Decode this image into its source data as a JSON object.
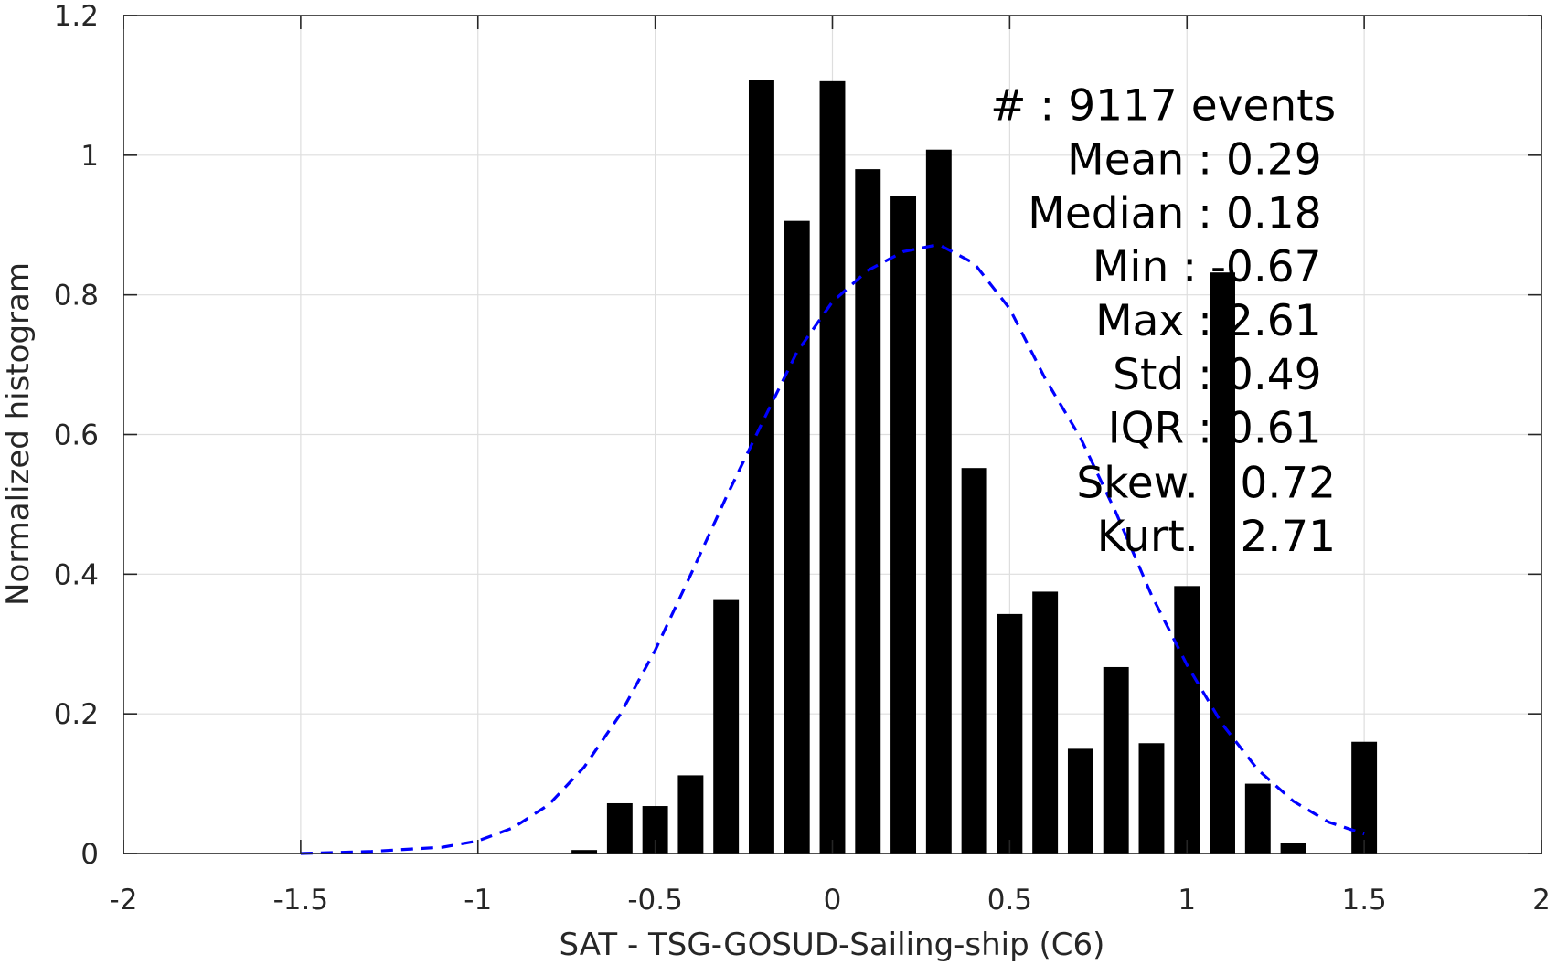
{
  "chart_data": {
    "type": "bar",
    "xlabel": "SAT - TSG-GOSUD-Sailing-ship (C6)",
    "ylabel": "Normalized histogram",
    "xlim": [
      -2,
      2
    ],
    "ylim": [
      0,
      1.2
    ],
    "xticks": [
      -2,
      -1.5,
      -1,
      -0.5,
      0,
      0.5,
      1,
      1.5,
      2
    ],
    "xtick_labels": [
      "-2",
      "-1.5",
      "-1",
      "-0.5",
      "0",
      "0.5",
      "1",
      "1.5",
      "2"
    ],
    "yticks": [
      0,
      0.2,
      0.4,
      0.6,
      0.8,
      1,
      1.2
    ],
    "ytick_labels": [
      "0",
      "0.2",
      "0.4",
      "0.6",
      "0.8",
      "1",
      "1.2"
    ],
    "grid": true,
    "bar_width": 0.072,
    "bar_color": "#000000",
    "series": [
      {
        "type": "bar",
        "x": [
          -0.7,
          -0.6,
          -0.5,
          -0.4,
          -0.3,
          -0.2,
          -0.1,
          0.0,
          0.1,
          0.2,
          0.3,
          0.4,
          0.5,
          0.6,
          0.7,
          0.8,
          0.9,
          1.0,
          1.1,
          1.2,
          1.3,
          1.5
        ],
        "values": [
          0.005,
          0.072,
          0.068,
          0.112,
          0.363,
          1.108,
          0.906,
          1.106,
          0.98,
          0.942,
          1.008,
          0.552,
          0.343,
          0.375,
          0.15,
          0.267,
          0.158,
          0.383,
          0.832,
          0.1,
          0.015,
          0.16
        ]
      },
      {
        "type": "line",
        "style": "dashed",
        "color": "#0000ff",
        "x": [
          -1.5,
          -1.3,
          -1.1,
          -1.0,
          -0.9,
          -0.8,
          -0.7,
          -0.6,
          -0.5,
          -0.4,
          -0.3,
          -0.2,
          -0.1,
          0.0,
          0.1,
          0.2,
          0.3,
          0.4,
          0.5,
          0.6,
          0.7,
          0.8,
          0.9,
          1.0,
          1.1,
          1.2,
          1.3,
          1.4,
          1.5
        ],
        "values": [
          0.0,
          0.003,
          0.009,
          0.018,
          0.037,
          0.07,
          0.124,
          0.198,
          0.291,
          0.399,
          0.51,
          0.615,
          0.718,
          0.79,
          0.835,
          0.862,
          0.872,
          0.845,
          0.78,
          0.68,
          0.595,
          0.488,
          0.37,
          0.27,
          0.185,
          0.12,
          0.075,
          0.045,
          0.028
        ]
      }
    ],
    "annotations": [
      {
        "text": "#  : 9117 events",
        "anchor": "end",
        "x": 1.42,
        "y": 1.05
      },
      {
        "text": "Mean : 0.29",
        "anchor": "end",
        "x": 1.38,
        "y": 0.973
      },
      {
        "text": "Median : 0.18",
        "anchor": "end",
        "x": 1.38,
        "y": 0.896
      },
      {
        "text": "Min : -0.67",
        "anchor": "end",
        "x": 1.38,
        "y": 0.819
      },
      {
        "text": "Max : 2.61",
        "anchor": "end",
        "x": 1.38,
        "y": 0.742
      },
      {
        "text": "Std : 0.49",
        "anchor": "end",
        "x": 1.38,
        "y": 0.665
      },
      {
        "text": "IQR : 0.61",
        "anchor": "end",
        "x": 1.38,
        "y": 0.588
      },
      {
        "text": "Skew. : 0.72",
        "anchor": "end",
        "x": 1.42,
        "y": 0.51
      },
      {
        "text": "Kurt. : 2.71",
        "anchor": "end",
        "x": 1.42,
        "y": 0.433
      }
    ]
  }
}
